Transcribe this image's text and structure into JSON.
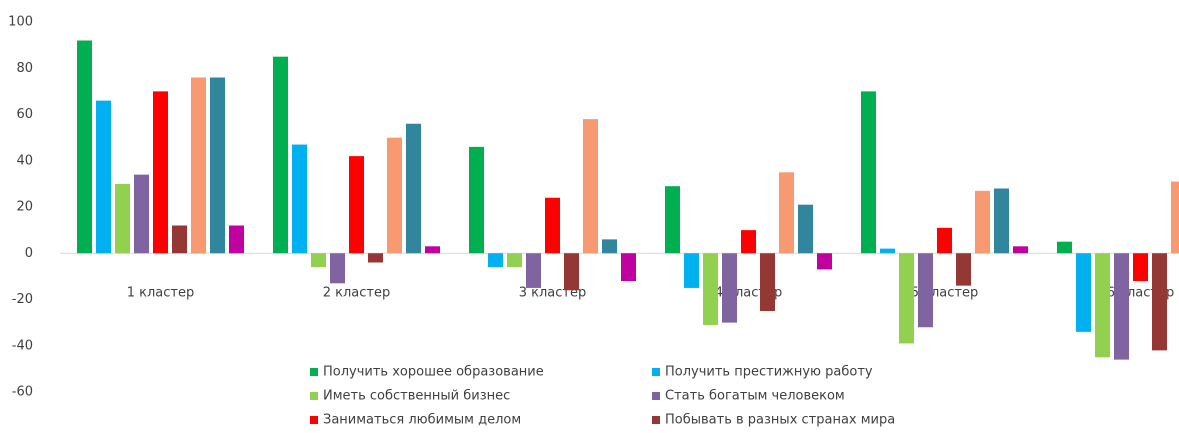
{
  "chart_data": {
    "type": "bar",
    "categories": [
      "1 кластер",
      "2 кластер",
      "3 кластер",
      "4 кластер",
      "5 кластер",
      "6 кластер"
    ],
    "series": [
      {
        "name": "Получить хорошее образование",
        "color": "#00b050",
        "values": [
          92,
          85,
          46,
          29,
          70,
          5
        ]
      },
      {
        "name": "Получить престижную работу",
        "color": "#00b0f0",
        "values": [
          66,
          47,
          -6,
          -15,
          2,
          -34
        ]
      },
      {
        "name": "Иметь собственный бизнес",
        "color": "#92d050",
        "values": [
          30,
          -6,
          -6,
          -31,
          -39,
          -45
        ]
      },
      {
        "name": "Стать богатым человеком",
        "color": "#8064a2",
        "values": [
          34,
          -13,
          -15,
          -30,
          -32,
          -46
        ]
      },
      {
        "name": "Заниматься любимым делом",
        "color": "#ff0000",
        "values": [
          70,
          42,
          24,
          10,
          11,
          -12
        ]
      },
      {
        "name": "Побывать в разных странах мира",
        "color": "#953735",
        "values": [
          12,
          -4,
          -16,
          -25,
          -14,
          -42
        ]
      },
      {
        "color": "#f79a72",
        "values": [
          76,
          50,
          58,
          35,
          27,
          31
        ]
      },
      {
        "color": "#31859c",
        "values": [
          76,
          56,
          6,
          21,
          28,
          null
        ]
      },
      {
        "color": "#c000a0",
        "values": [
          12,
          3,
          -12,
          -7,
          3,
          null
        ]
      }
    ],
    "ylim": [
      -60,
      100
    ],
    "yticks": [
      -60,
      -40,
      -20,
      0,
      20,
      40,
      60,
      80,
      100
    ],
    "grid": false
  }
}
